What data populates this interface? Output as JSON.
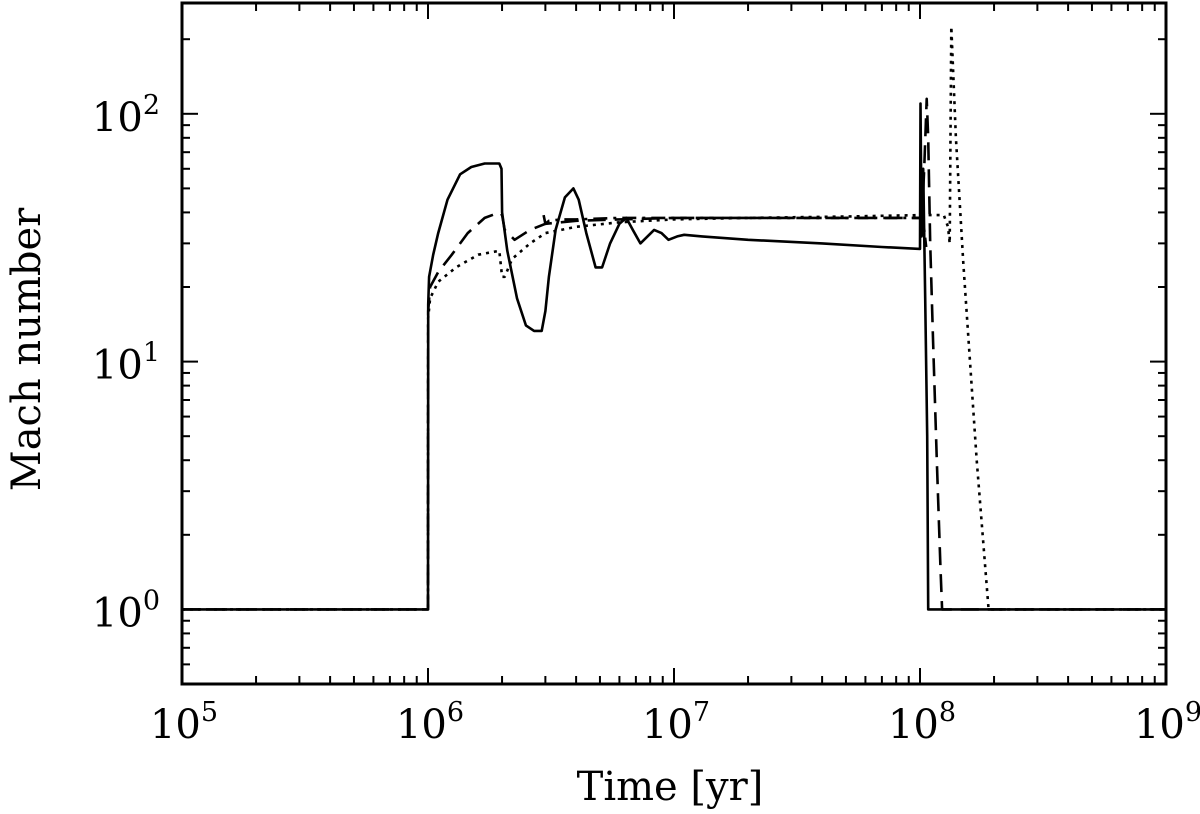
{
  "chart_data": {
    "type": "line",
    "xlabel": "Time [yr]",
    "ylabel": "Mach number",
    "x_scale": "log",
    "y_scale": "log",
    "xlim": [
      100000,
      1000000000
    ],
    "ylim": [
      0.5,
      280
    ],
    "grid": false,
    "x_ticks": [
      {
        "value": 100000,
        "base": "10",
        "exp": "5"
      },
      {
        "value": 1000000,
        "base": "10",
        "exp": "6"
      },
      {
        "value": 10000000,
        "base": "10",
        "exp": "7"
      },
      {
        "value": 100000000,
        "base": "10",
        "exp": "8"
      },
      {
        "value": 1000000000,
        "base": "10",
        "exp": "9"
      }
    ],
    "y_ticks": [
      {
        "value": 1,
        "base": "10",
        "exp": "0"
      },
      {
        "value": 10,
        "base": "10",
        "exp": "1"
      },
      {
        "value": 100,
        "base": "10",
        "exp": "2"
      }
    ],
    "series": [
      {
        "style": "solid",
        "x": [
          100000,
          1000000,
          1002000,
          1010000,
          1050000,
          1100000,
          1200000,
          1350000,
          1500000,
          1700000,
          1950000,
          1990000,
          2000000,
          2100000,
          2300000,
          2500000,
          2700000,
          2900000,
          3000000,
          3100000,
          3300000,
          3600000,
          3900000,
          4100000,
          4400000,
          4800000,
          5100000,
          5500000,
          6000000,
          6400000,
          6800000,
          7300000,
          7800000,
          8300000,
          8900000,
          9500000,
          10300000,
          11000000,
          13000000,
          20000000,
          40000000,
          70000000,
          100000000,
          100500000,
          101500000,
          103000000,
          105000000,
          107000000,
          108000000,
          110000000,
          1000000000
        ],
        "y": [
          1.0,
          1.0,
          17.0,
          22.0,
          27.0,
          33.0,
          45.0,
          57.0,
          61.0,
          63.0,
          63.0,
          60.0,
          40.0,
          28.0,
          18.0,
          14.0,
          13.3,
          13.3,
          16.0,
          22.0,
          34.0,
          46.0,
          50.0,
          45.0,
          33.0,
          24.0,
          24.0,
          30.0,
          36.0,
          38.0,
          34.0,
          30.0,
          32.0,
          34.0,
          33.0,
          31.0,
          32.0,
          32.5,
          32.0,
          31.0,
          30.0,
          29.0,
          28.5,
          110.0,
          32.0,
          60.0,
          18.0,
          5.0,
          1.0,
          1.0,
          1.0
        ]
      },
      {
        "style": "dashed",
        "x": [
          100000,
          1000000,
          1002000,
          1020000,
          1100000,
          1250000,
          1450000,
          1700000,
          1950000,
          2000000,
          2050000,
          2250000,
          2600000,
          3000000,
          4000000,
          6000000,
          10000000,
          20000000,
          50000000,
          100000000,
          101500000,
          104000000,
          106500000,
          108000000,
          110000000,
          113000000,
          117000000,
          121000000,
          123000000,
          1000000000
        ],
        "y": [
          1.0,
          1.0,
          16.0,
          20.0,
          23.0,
          27.0,
          33.0,
          38.0,
          40.0,
          39.0,
          34.0,
          31.0,
          34.0,
          36.0,
          37.0,
          37.5,
          38.0,
          38.0,
          38.0,
          38.0,
          35.0,
          60.0,
          115.0,
          80.0,
          30.0,
          12.0,
          4.0,
          1.5,
          1.0,
          1.0
        ]
      },
      {
        "style": "dotted",
        "x": [
          100000,
          1000000,
          1002000,
          1020000,
          1100000,
          1300000,
          1600000,
          1950000,
          2000000,
          2050000,
          2200000,
          2600000,
          3000000,
          4000000,
          6000000,
          10000000,
          20000000,
          50000000,
          100000000,
          125000000,
          130000000,
          132000000,
          134000000,
          140000000,
          150000000,
          170000000,
          190000000,
          1000000000
        ],
        "y": [
          1.0,
          1.0,
          15.0,
          18.0,
          21.0,
          24.0,
          27.0,
          28.0,
          22.0,
          22.0,
          26.0,
          30.0,
          33.0,
          35.0,
          36.5,
          37.5,
          38.0,
          38.5,
          39.0,
          39.0,
          35.0,
          30.0,
          225.0,
          80.0,
          25.0,
          4.0,
          1.0,
          1.0
        ]
      },
      {
        "style": "dashdot",
        "x": [
          2950000,
          3000000,
          3100000,
          3500000,
          4000000,
          6000000,
          10000000,
          20000000,
          50000000,
          100000000,
          103000000,
          106000000
        ],
        "y": [
          39.0,
          36.0,
          37.0,
          37.5,
          37.5,
          38.0,
          38.0,
          38.0,
          38.0,
          38.0,
          37.0,
          29.0
        ]
      }
    ]
  }
}
